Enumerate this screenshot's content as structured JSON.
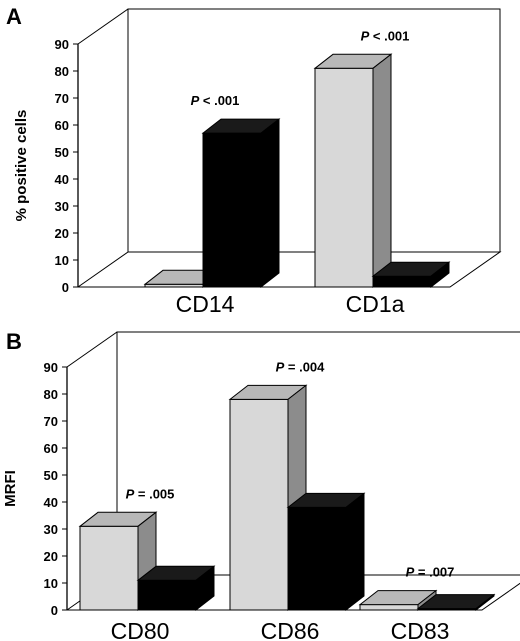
{
  "chart_data": [
    {
      "type": "bar",
      "panel_label": "A",
      "ylabel": "% positive cells",
      "ylim": [
        0,
        90
      ],
      "yticks": [
        0,
        10,
        20,
        30,
        40,
        50,
        60,
        70,
        80,
        90
      ],
      "categories": [
        "CD14",
        "CD1a"
      ],
      "series": [
        {
          "values": [
            1,
            81
          ],
          "color": "#d8d8d8"
        },
        {
          "values": [
            57,
            4
          ],
          "color": "#000000"
        }
      ],
      "annotations": [
        {
          "category": "CD14",
          "p_prefix": "P",
          "p_rest": " < .001"
        },
        {
          "category": "CD1a",
          "p_prefix": "P",
          "p_rest": " < .001"
        }
      ],
      "style": "3d"
    },
    {
      "type": "bar",
      "panel_label": "B",
      "ylabel": "MRFI",
      "ylim": [
        0,
        90
      ],
      "yticks": [
        0,
        10,
        20,
        30,
        40,
        50,
        60,
        70,
        80,
        90
      ],
      "categories": [
        "CD80",
        "CD86",
        "CD83"
      ],
      "series": [
        {
          "values": [
            31,
            78,
            2
          ],
          "color": "#d8d8d8"
        },
        {
          "values": [
            11,
            38,
            0.5
          ],
          "color": "#000000"
        }
      ],
      "annotations": [
        {
          "category": "CD80",
          "p_prefix": "P",
          "p_rest": " = .005"
        },
        {
          "category": "CD86",
          "p_prefix": "P",
          "p_rest": " = .004"
        },
        {
          "category": "CD83",
          "p_prefix": "P",
          "p_rest": " = .007"
        }
      ],
      "style": "3d"
    }
  ]
}
